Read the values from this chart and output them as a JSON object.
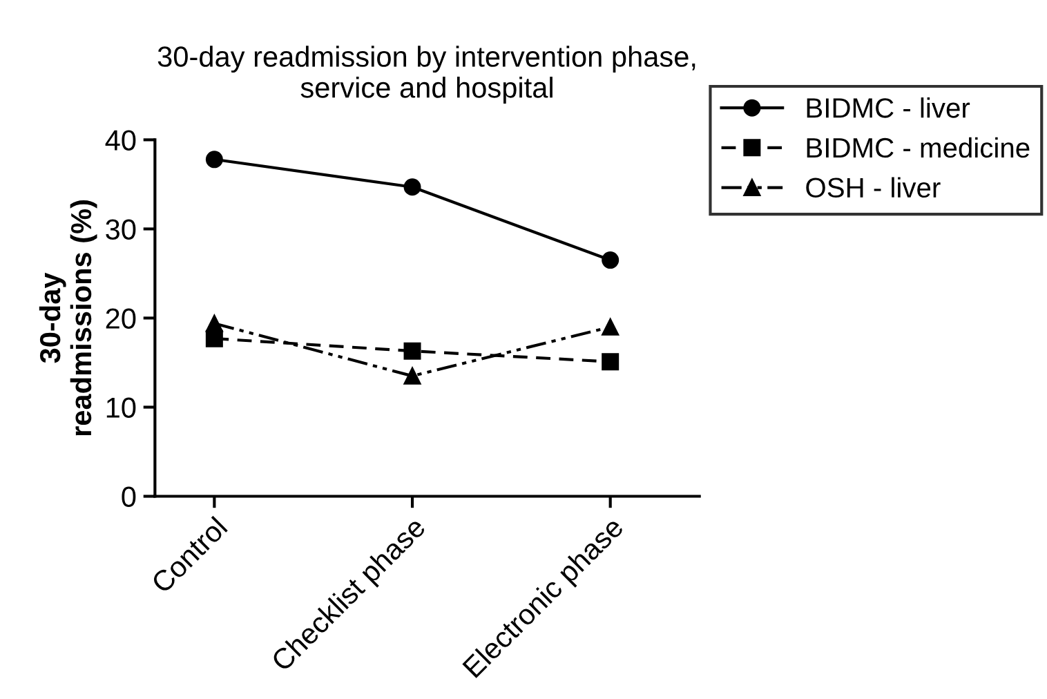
{
  "chart_data": {
    "type": "line",
    "title": "30-day readmission by intervention phase,\nservice and hospital",
    "ylabel": "30-day\nreadmissions (%)",
    "categories": [
      "Control",
      "Checklist phase",
      "Electronic phase"
    ],
    "series": [
      {
        "name": "BIDMC - liver",
        "color": "#000000",
        "values": [
          37.8,
          34.7,
          26.5
        ],
        "marker": "circle",
        "line_style": "solid"
      },
      {
        "name": "BIDMC - medicine",
        "color": "#000000",
        "values": [
          17.7,
          16.3,
          15.1
        ],
        "marker": "square",
        "line_style": "dashed"
      },
      {
        "name": "OSH - liver",
        "color": "#000000",
        "values": [
          19.4,
          13.5,
          19.0
        ],
        "marker": "triangle",
        "line_style": "dotted"
      }
    ],
    "ylim": [
      0,
      40
    ],
    "yticks": [
      0,
      10,
      20,
      30,
      40
    ],
    "legend": "top right",
    "grid": false
  }
}
